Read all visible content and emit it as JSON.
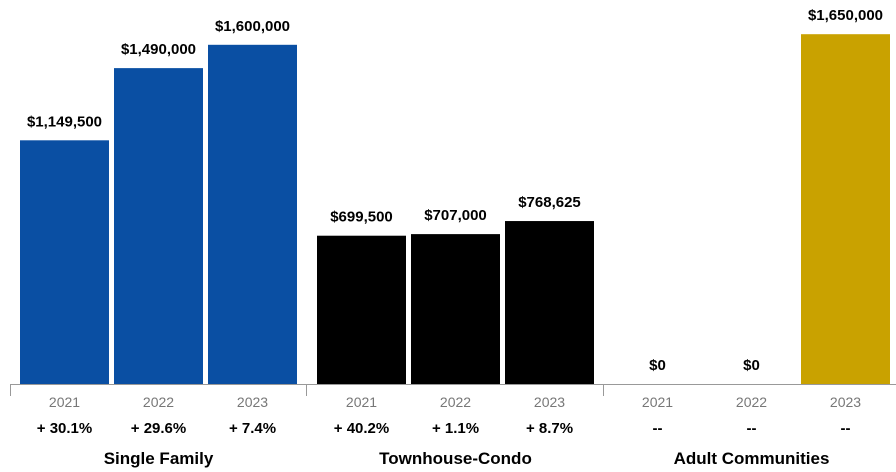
{
  "chart_data": {
    "type": "bar",
    "ylim": [
      0,
      1700000
    ],
    "grid": false,
    "groups": [
      {
        "name": "Single Family",
        "color": "#0a4fa3",
        "bars": [
          {
            "year": "2021",
            "value": 1149500,
            "value_label": "$1,149,500",
            "change": "+ 30.1%"
          },
          {
            "year": "2022",
            "value": 1490000,
            "value_label": "$1,490,000",
            "change": "+ 29.6%"
          },
          {
            "year": "2023",
            "value": 1600000,
            "value_label": "$1,600,000",
            "change": "+ 7.4%"
          }
        ]
      },
      {
        "name": "Townhouse-Condo",
        "color": "#000000",
        "bars": [
          {
            "year": "2021",
            "value": 699500,
            "value_label": "$699,500",
            "change": "+ 40.2%"
          },
          {
            "year": "2022",
            "value": 707000,
            "value_label": "$707,000",
            "change": "+ 1.1%"
          },
          {
            "year": "2023",
            "value": 768625,
            "value_label": "$768,625",
            "change": "+ 8.7%"
          }
        ]
      },
      {
        "name": "Adult Communities",
        "color": "#c9a200",
        "bars": [
          {
            "year": "2021",
            "value": 0,
            "value_label": "$0",
            "change": "--"
          },
          {
            "year": "2022",
            "value": 0,
            "value_label": "$0",
            "change": "--"
          },
          {
            "year": "2023",
            "value": 1650000,
            "value_label": "$1,650,000",
            "change": "--"
          }
        ]
      }
    ]
  }
}
